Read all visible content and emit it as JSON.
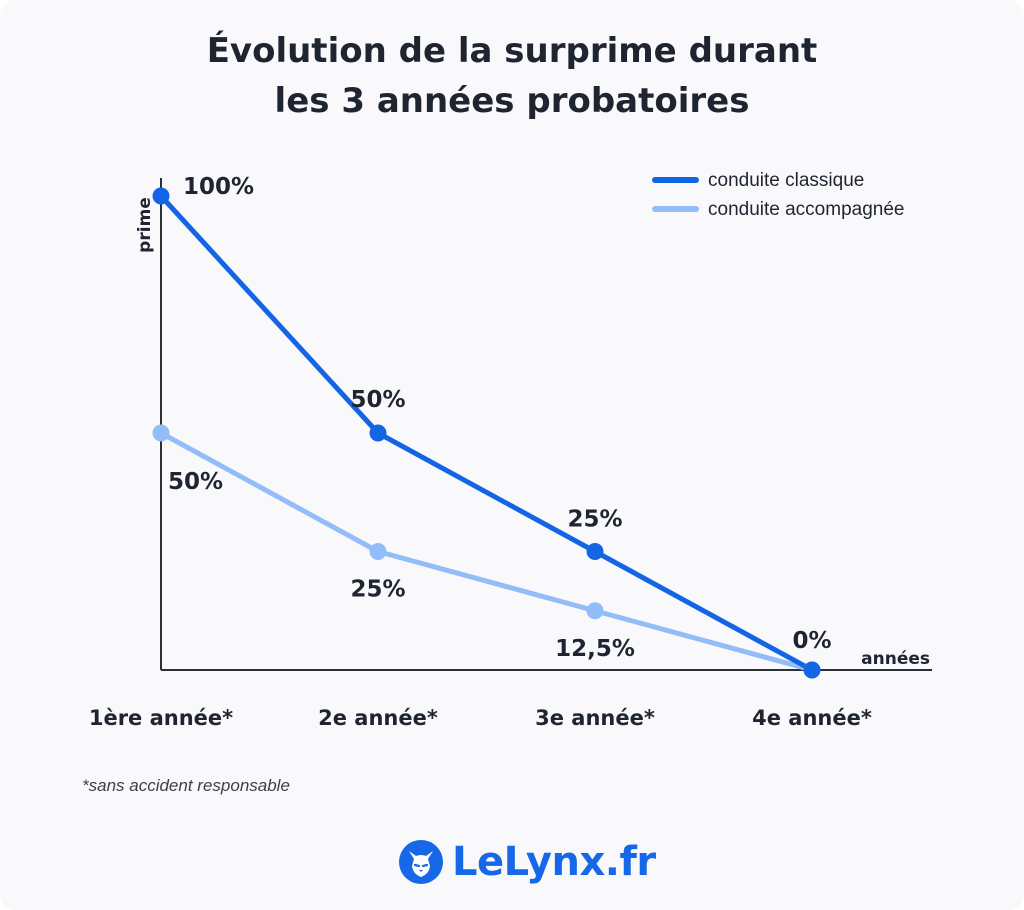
{
  "title_lines": [
    "Évolution de la surprime durant",
    "les 3 années probatoires"
  ],
  "footnote": "*sans accident responsable",
  "logo": {
    "text": "LeLynx.fr",
    "icon": "lynx-icon"
  },
  "colors": {
    "classique": "#1465e4",
    "accompagnee": "#93bdf8",
    "text": "#1f2530",
    "axis": "#2b2f36"
  },
  "chart_data": {
    "type": "line",
    "title": "Évolution de la surprime durant les 3 années probatoires",
    "xlabel": "années",
    "ylabel": "prime",
    "categories": [
      "1ère année*",
      "2e année*",
      "3e année*",
      "4e année*"
    ],
    "ylim": [
      0,
      100
    ],
    "grid": false,
    "legend": "top-right",
    "series": [
      {
        "name": "conduite classique",
        "values": [
          100,
          50,
          25,
          0
        ],
        "labels": [
          "100%",
          "50%",
          "25%",
          "0%"
        ]
      },
      {
        "name": "conduite accompagnée",
        "values": [
          50,
          25,
          12.5,
          0
        ],
        "labels": [
          "50%",
          "25%",
          "12,5%",
          ""
        ]
      }
    ]
  }
}
